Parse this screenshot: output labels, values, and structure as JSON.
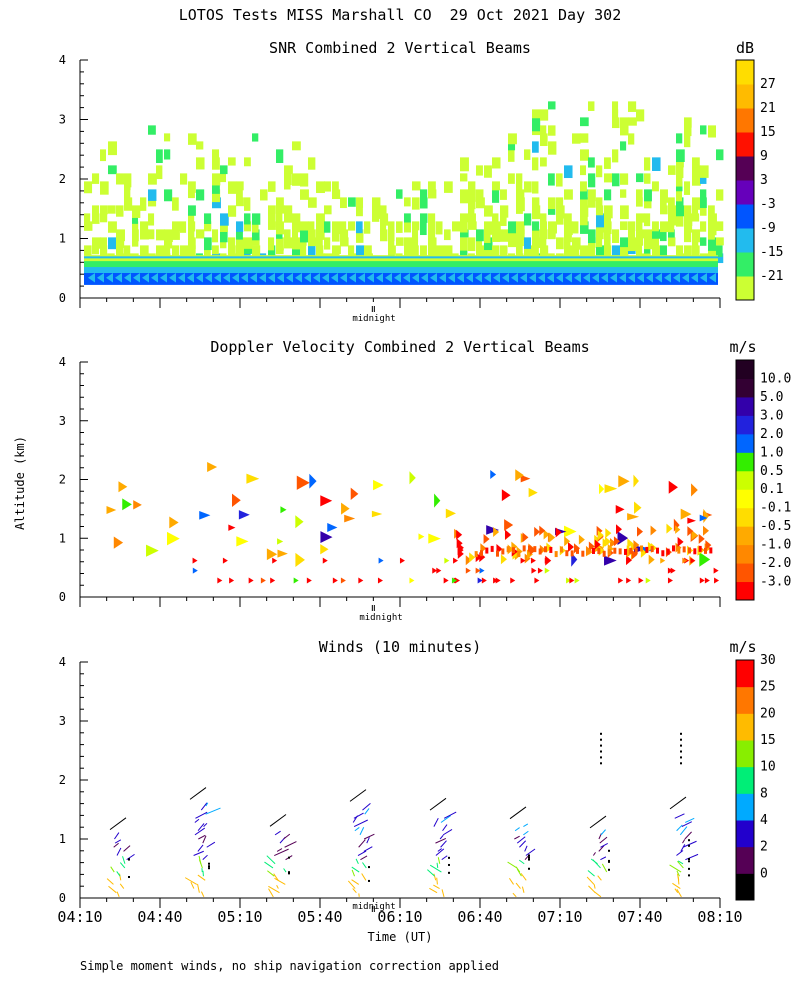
{
  "figure_title": "LOTOS Tests MISS Marshall CO  29 Oct 2021 Day 302",
  "ylabel": "Altitude (km)",
  "xlabel": "Time (UT)",
  "midnight_label": "midnight",
  "footnote": "Simple moment winds, no ship navigation correction applied",
  "chart_data": [
    {
      "type": "heatmap",
      "title": "SNR Combined 2 Vertical Beams",
      "units": "dB",
      "ylim": [
        0,
        4
      ],
      "yticks": [
        "0",
        "1",
        "2",
        "3",
        "4"
      ],
      "xlim": [
        0,
        240
      ],
      "colorbar_labels": [
        "-21",
        "-15",
        "-9",
        "-3",
        "3",
        "9",
        "15",
        "21",
        "27"
      ],
      "colors": [
        "#ccff33",
        "#33ee66",
        "#22bbee",
        "#0055ff",
        "#6600bb",
        "#550055",
        "#ff1100",
        "#ff7700",
        "#ffbb00",
        "#ffdd00"
      ]
    },
    {
      "type": "heatmap",
      "title": "Doppler Velocity Combined 2 Vertical Beams",
      "units": "m/s",
      "ylim": [
        0,
        4
      ],
      "yticks": [
        "0",
        "1",
        "2",
        "3",
        "4"
      ],
      "xlim": [
        0,
        240
      ],
      "colorbar_labels": [
        "-3.0",
        "-2.0",
        "-1.0",
        "-0.5",
        "-0.1",
        "0.1",
        "0.5",
        "1.0",
        "2.0",
        "3.0",
        "5.0",
        "10.0"
      ],
      "colors": [
        "#ff0000",
        "#ff5500",
        "#ff8800",
        "#ffaa00",
        "#ffdd00",
        "#ffff00",
        "#ccff00",
        "#33ee00",
        "#0066ff",
        "#2222dd",
        "#3300aa",
        "#330033",
        "#220022"
      ]
    },
    {
      "type": "scatter",
      "title": "Winds (10 minutes)",
      "units": "m/s",
      "ylim": [
        0,
        4
      ],
      "yticks": [
        "0",
        "1",
        "2",
        "3",
        "4"
      ],
      "xlim": [
        0,
        240
      ],
      "xticks": [
        "04:10",
        "04:40",
        "05:10",
        "05:40",
        "06:10",
        "06:40",
        "07:10",
        "07:40",
        "08:10"
      ],
      "colorbar_labels": [
        "0",
        "2",
        "4",
        "8",
        "10",
        "15",
        "20",
        "25",
        "30"
      ],
      "colors": [
        "#000000",
        "#550055",
        "#2200cc",
        "#00aaff",
        "#00ee77",
        "#88ee00",
        "#ffbb00",
        "#ff7700",
        "#ff0000"
      ],
      "profile_times_min": [
        15,
        45,
        75,
        105,
        135,
        165,
        195,
        225
      ]
    }
  ]
}
